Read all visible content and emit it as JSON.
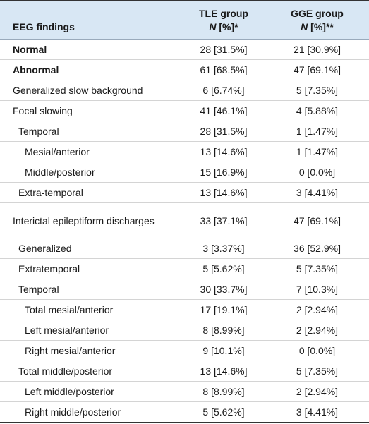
{
  "table": {
    "header": {
      "col0": "EEG findings",
      "col1": {
        "title": "TLE group",
        "n": "N",
        "unit": "[%]*"
      },
      "col2": {
        "title": "GGE group",
        "n": "N",
        "unit": "[%]**"
      }
    },
    "rows": [
      [
        "Normal",
        "28 [31.5%]",
        "21 [30.9%]"
      ],
      [
        "Abnormal",
        "61 [68.5%]",
        "47 [69.1%]"
      ],
      [
        "Generalized slow background",
        "6 [6.74%]",
        "5 [7.35%]"
      ],
      [
        "Focal slowing",
        "41 [46.1%]",
        "4 [5.88%]"
      ],
      [
        "Temporal",
        "28 [31.5%]",
        "1 [1.47%]"
      ],
      [
        "Mesial/anterior",
        "13 [14.6%]",
        "1 [1.47%]"
      ],
      [
        "Middle/posterior",
        "15 [16.9%]",
        "0 [0.0%]"
      ],
      [
        "Extra-temporal",
        "13 [14.6%]",
        "3 [4.41%]"
      ],
      [
        "Interictal epileptiform discharges",
        "33 [37.1%]",
        "47 [69.1%]"
      ],
      [
        "Generalized",
        "3 [3.37%]",
        "36 [52.9%]"
      ],
      [
        "Extratemporal",
        "5 [5.62%]",
        "5 [7.35%]"
      ],
      [
        "Temporal",
        "30 [33.7%]",
        "7 [10.3%]"
      ],
      [
        "Total mesial/anterior",
        "17 [19.1%]",
        "2 [2.94%]"
      ],
      [
        "Left mesial/anterior",
        "8 [8.99%]",
        "2 [2.94%]"
      ],
      [
        "Right mesial/anterior",
        "9 [10.1%]",
        "0 [0.0%]"
      ],
      [
        "Total middle/posterior",
        "13 [14.6%]",
        "5 [7.35%]"
      ],
      [
        "Left middle/posterior",
        "8 [8.99%]",
        "2 [2.94%]"
      ],
      [
        "Right middle/posterior",
        "5 [5.62%]",
        "3 [4.41%]"
      ]
    ]
  }
}
